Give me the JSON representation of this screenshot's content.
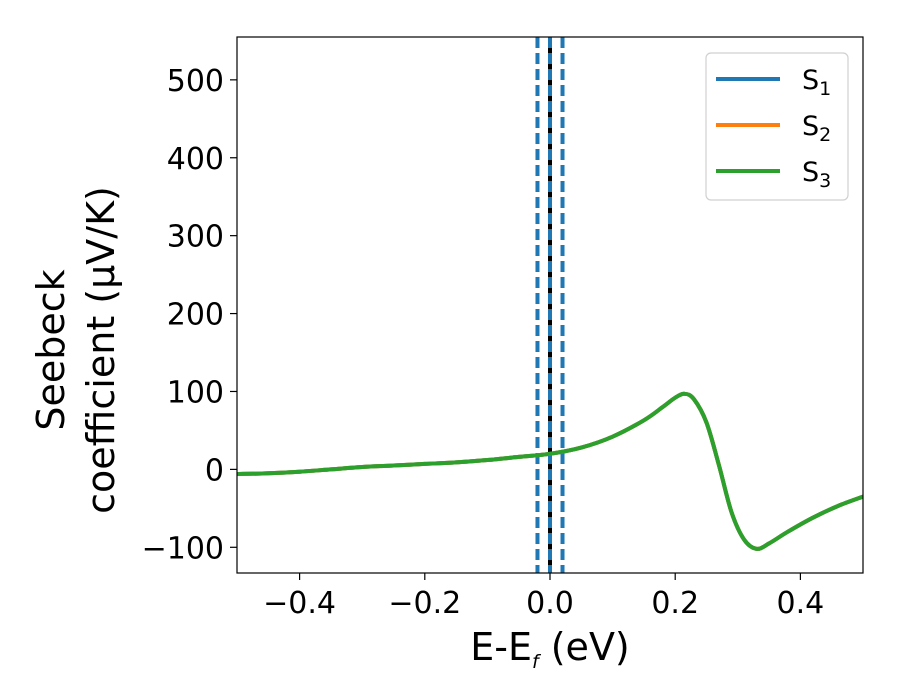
{
  "chart_data": {
    "type": "line",
    "xlabel": {
      "main": "E-E",
      "sub": "f",
      "unit": " (eV)"
    },
    "ylabel": {
      "line1": "Seebeck",
      "line2": "coefficient  (μV/K)"
    },
    "xlim": [
      -0.5,
      0.5
    ],
    "ylim": [
      -133,
      555
    ],
    "xticks": [
      -0.4,
      -0.2,
      0.0,
      0.2,
      0.4
    ],
    "xtick_labels": [
      "−0.4",
      "−0.2",
      "0.0",
      "0.2",
      "0.4"
    ],
    "yticks": [
      -100,
      0,
      100,
      200,
      300,
      400,
      500
    ],
    "ytick_labels": [
      "−100",
      "0",
      "100",
      "200",
      "300",
      "400",
      "500"
    ],
    "grid": false,
    "legend_position": "top-right",
    "x": [
      -0.5,
      -0.45,
      -0.4,
      -0.35,
      -0.3,
      -0.25,
      -0.2,
      -0.15,
      -0.1,
      -0.05,
      0.0,
      0.05,
      0.1,
      0.15,
      0.18,
      0.2,
      0.215,
      0.23,
      0.25,
      0.27,
      0.29,
      0.31,
      0.33,
      0.35,
      0.38,
      0.42,
      0.46,
      0.5
    ],
    "series": [
      {
        "name": "S",
        "sub": "1",
        "color": "#1f77b4",
        "values": [
          -6,
          -5,
          -3,
          0,
          3,
          5,
          7,
          9,
          12,
          16,
          20,
          28,
          42,
          63,
          80,
          92,
          97,
          90,
          60,
          5,
          -55,
          -90,
          -102,
          -95,
          -80,
          -62,
          -47,
          -35
        ]
      },
      {
        "name": "S",
        "sub": "2",
        "color": "#ff7f0e",
        "values": [
          -6,
          -5,
          -3,
          0,
          3,
          5,
          7,
          9,
          12,
          16,
          20,
          28,
          42,
          63,
          80,
          92,
          97,
          90,
          60,
          5,
          -55,
          -90,
          -102,
          -95,
          -80,
          -62,
          -47,
          -35
        ]
      },
      {
        "name": "S",
        "sub": "3",
        "color": "#2ca02c",
        "values": [
          -6,
          -5,
          -3,
          0,
          3,
          5,
          7,
          9,
          12,
          16,
          20,
          28,
          42,
          63,
          80,
          92,
          97,
          90,
          60,
          5,
          -55,
          -90,
          -102,
          -95,
          -80,
          -62,
          -47,
          -35
        ]
      }
    ],
    "vlines": [
      {
        "x": -0.02,
        "color": "#1f77b4",
        "style": "dashed"
      },
      {
        "x": 0.0,
        "color": "#000000",
        "style": "solid"
      },
      {
        "x": 0.0,
        "color": "#1f77b4",
        "style": "dashed"
      },
      {
        "x": 0.02,
        "color": "#1f77b4",
        "style": "dashed"
      }
    ]
  }
}
